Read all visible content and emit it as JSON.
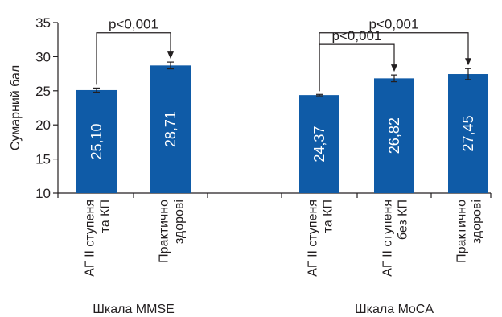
{
  "chart_data": {
    "type": "bar",
    "ylabel": "Сумарний бал",
    "ylim": [
      10,
      35
    ],
    "yticks": [
      10,
      15,
      20,
      25,
      30,
      35
    ],
    "grid": false,
    "legend": "none",
    "bar_color": "#0f5ba7",
    "categories": [
      {
        "lines": [
          "АГ ІІ ступеня",
          "та КП"
        ],
        "value": 25.1,
        "label": "25,10",
        "error": 0.3,
        "group": 0
      },
      {
        "lines": [
          "Практично",
          "здорові"
        ],
        "value": 28.71,
        "label": "28,71",
        "error": 0.5,
        "group": 0
      },
      {
        "lines": [
          "АГ ІІ ступеня",
          "та КП"
        ],
        "value": 24.37,
        "label": "24,37",
        "error": 0.1,
        "group": 1
      },
      {
        "lines": [
          "АГ ІІ ступеня",
          "без КП"
        ],
        "value": 26.82,
        "label": "26,82",
        "error": 0.5,
        "group": 1
      },
      {
        "lines": [
          "Практично",
          "здорові"
        ],
        "value": 27.45,
        "label": "27,45",
        "error": 0.8,
        "group": 1
      }
    ],
    "groups": [
      {
        "name": "Шкала MMSE"
      },
      {
        "name": "Шкала MoCA"
      }
    ],
    "annotations": [
      {
        "text": "p<0,001",
        "from": 0,
        "to": 1,
        "level": 33.5
      },
      {
        "text": "p<0,001",
        "from": 2,
        "to": 3,
        "level": 31.8
      },
      {
        "text": "p<0,001",
        "from": 2,
        "to": 4,
        "level": 33.5
      }
    ]
  }
}
